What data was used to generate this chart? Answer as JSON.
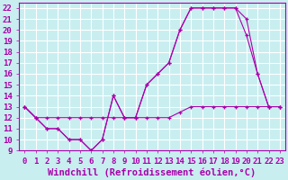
{
  "xlabel": "Windchill (Refroidissement éolien,°C)",
  "xlim": [
    -0.5,
    23.5
  ],
  "ylim": [
    9,
    22.5
  ],
  "xticks": [
    0,
    1,
    2,
    3,
    4,
    5,
    6,
    7,
    8,
    9,
    10,
    11,
    12,
    13,
    14,
    15,
    16,
    17,
    18,
    19,
    20,
    21,
    22,
    23
  ],
  "yticks": [
    9,
    10,
    11,
    12,
    13,
    14,
    15,
    16,
    17,
    18,
    19,
    20,
    21,
    22
  ],
  "bg_color": "#c8eef0",
  "grid_color": "#ffffff",
  "line_color": "#aa00aa",
  "line1_x": [
    0,
    1,
    2,
    3,
    4,
    5,
    6,
    7,
    8,
    9,
    10,
    11,
    12,
    13,
    14,
    15,
    16,
    17,
    18,
    19,
    20,
    21,
    22,
    23
  ],
  "line1_y": [
    13,
    12,
    11,
    11,
    10,
    10,
    9,
    10,
    14,
    12,
    12,
    15,
    16,
    17,
    20,
    22,
    22,
    22,
    22,
    22,
    21,
    16,
    13,
    13
  ],
  "line2_x": [
    0,
    1,
    2,
    3,
    4,
    5,
    6,
    7,
    8,
    9,
    10,
    11,
    12,
    13,
    14,
    15,
    16,
    17,
    18,
    19,
    20,
    21,
    22,
    23
  ],
  "line2_y": [
    13,
    12,
    11,
    11,
    10,
    10,
    9,
    10,
    14,
    12,
    12,
    15,
    16,
    17,
    20,
    22,
    22,
    22,
    22,
    22,
    19.5,
    16,
    13,
    13
  ],
  "line3_x": [
    0,
    1,
    2,
    3,
    4,
    5,
    6,
    7,
    8,
    9,
    10,
    11,
    12,
    13,
    14,
    15,
    16,
    17,
    18,
    19,
    20,
    21,
    22,
    23
  ],
  "line3_y": [
    13,
    12,
    12,
    12,
    12,
    12,
    12,
    12,
    12,
    12,
    12,
    12,
    12,
    12,
    12.5,
    13,
    13,
    13,
    13,
    13,
    13,
    13,
    13,
    13
  ],
  "tick_fontsize": 6.5,
  "xlabel_fontsize": 7.5
}
